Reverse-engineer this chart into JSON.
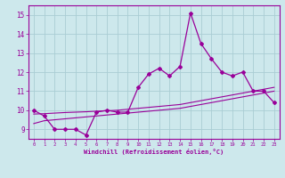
{
  "x": [
    0,
    1,
    2,
    3,
    4,
    5,
    6,
    7,
    8,
    9,
    10,
    11,
    12,
    13,
    14,
    15,
    16,
    17,
    18,
    19,
    20,
    21,
    22,
    23
  ],
  "y_main": [
    10.0,
    9.7,
    9.0,
    9.0,
    9.0,
    8.7,
    9.9,
    10.0,
    9.9,
    9.9,
    11.2,
    11.9,
    12.2,
    11.8,
    12.3,
    15.1,
    13.5,
    12.7,
    12.0,
    11.8,
    12.0,
    11.0,
    11.0,
    10.4
  ],
  "y_trend1": [
    9.3,
    9.45,
    9.5,
    9.55,
    9.6,
    9.65,
    9.7,
    9.75,
    9.8,
    9.85,
    9.9,
    9.95,
    10.0,
    10.05,
    10.1,
    10.2,
    10.3,
    10.4,
    10.5,
    10.6,
    10.7,
    10.8,
    10.9,
    11.0
  ],
  "y_trend2": [
    9.8,
    9.82,
    9.85,
    9.88,
    9.9,
    9.92,
    9.95,
    9.97,
    10.0,
    10.05,
    10.1,
    10.15,
    10.2,
    10.25,
    10.3,
    10.4,
    10.5,
    10.6,
    10.7,
    10.8,
    10.9,
    11.0,
    11.1,
    11.2
  ],
  "line_color": "#990099",
  "bg_color": "#cde8ec",
  "grid_color": "#aacdd4",
  "xlabel": "Windchill (Refroidissement éolien,°C)",
  "ylim": [
    8.5,
    15.5
  ],
  "xlim": [
    -0.5,
    23.5
  ],
  "yticks": [
    9,
    10,
    11,
    12,
    13,
    14,
    15
  ],
  "xticks": [
    0,
    1,
    2,
    3,
    4,
    5,
    6,
    7,
    8,
    9,
    10,
    11,
    12,
    13,
    14,
    15,
    16,
    17,
    18,
    19,
    20,
    21,
    22,
    23
  ]
}
